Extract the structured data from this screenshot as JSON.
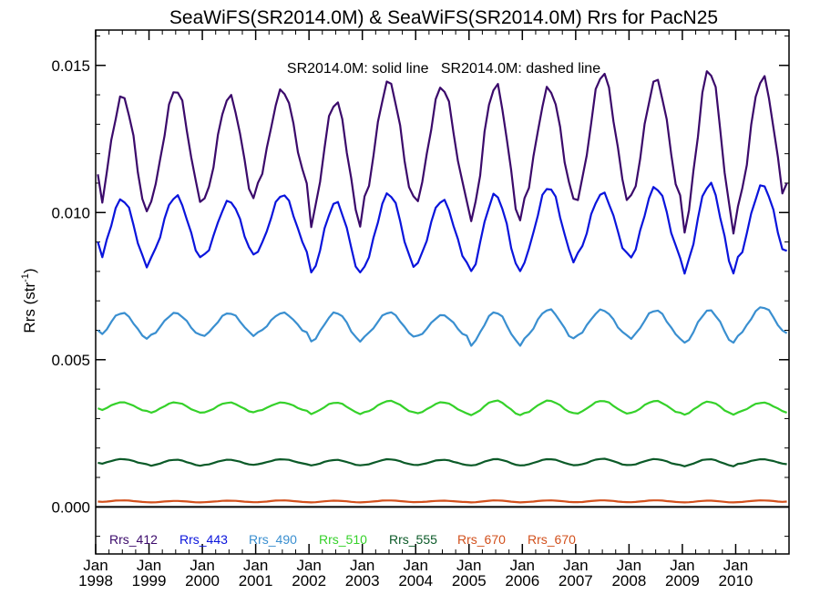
{
  "chart_data": {
    "type": "line",
    "title": "SeaWiFS(SR2014.0M) & SeaWiFS(SR2014.0M)  Rrs for PacN25",
    "annotation": "SR2014.0M: solid line   SR2014.0M: dashed line",
    "ylabel": "Rrs (str",
    "ylabel_sup": "-1",
    "ylabel_close": ")",
    "ylim": [
      -0.0016,
      0.0162
    ],
    "yticks": [
      {
        "value": 0.0,
        "label": "0.000"
      },
      {
        "value": 0.005,
        "label": "0.005"
      },
      {
        "value": 0.01,
        "label": "0.010"
      },
      {
        "value": 0.015,
        "label": "0.015"
      }
    ],
    "xlim": [
      "1998-01",
      "2011-01"
    ],
    "xticks": [
      {
        "month": "Jan",
        "year": "1998"
      },
      {
        "month": "Jan",
        "year": "1999"
      },
      {
        "month": "Jan",
        "year": "2000"
      },
      {
        "month": "Jan",
        "year": "2001"
      },
      {
        "month": "Jan",
        "year": "2002"
      },
      {
        "month": "Jan",
        "year": "2003"
      },
      {
        "month": "Jan",
        "year": "2004"
      },
      {
        "month": "Jan",
        "year": "2005"
      },
      {
        "month": "Jan",
        "year": "2006"
      },
      {
        "month": "Jan",
        "year": "2007"
      },
      {
        "month": "Jan",
        "year": "2008"
      },
      {
        "month": "Jan",
        "year": "2009"
      },
      {
        "month": "Jan",
        "year": "2010"
      }
    ],
    "series": [
      {
        "name": "Rrs_412",
        "color": "#3b0a6b",
        "style": "solid",
        "yearly_peak": [
          0.014,
          0.0142,
          0.0139,
          0.0141,
          0.0137,
          0.0144,
          0.0143,
          0.0144,
          0.0143,
          0.0148,
          0.0145,
          0.0148,
          0.0145
        ],
        "yearly_trough": [
          0.0098,
          0.0104,
          0.0104,
          0.011,
          0.0096,
          0.0104,
          0.0104,
          0.0095,
          0.0103,
          0.0104,
          0.0104,
          0.0094,
          0.0102
        ],
        "first_value": 0.0113,
        "last_value": 0.011
      },
      {
        "name": "Rrs_443",
        "color": "#0a14dc",
        "style": "solid",
        "yearly_peak": [
          0.0105,
          0.0106,
          0.0104,
          0.0106,
          0.0103,
          0.0106,
          0.0104,
          0.0106,
          0.0109,
          0.0107,
          0.0109,
          0.011,
          0.0109
        ],
        "yearly_trough": [
          0.0081,
          0.0084,
          0.0085,
          0.0087,
          0.0079,
          0.0082,
          0.0083,
          0.0079,
          0.0083,
          0.0085,
          0.0084,
          0.0079,
          0.0084
        ],
        "first_value": 0.009,
        "last_value": 0.0087
      },
      {
        "name": "Rrs_490",
        "color": "#3a8fd0",
        "style": "solid",
        "yearly_peak": [
          0.0066,
          0.0066,
          0.0066,
          0.0066,
          0.0066,
          0.0066,
          0.0065,
          0.0066,
          0.0067,
          0.0067,
          0.0067,
          0.0067,
          0.0068
        ],
        "yearly_trough": [
          0.0057,
          0.0058,
          0.0058,
          0.0059,
          0.0056,
          0.0058,
          0.0058,
          0.0055,
          0.0057,
          0.0058,
          0.0057,
          0.0055,
          0.0058
        ],
        "first_value": 0.006,
        "last_value": 0.0059
      },
      {
        "name": "Rrs_510",
        "color": "#35d12a",
        "style": "solid",
        "yearly_peak": [
          0.00355,
          0.00355,
          0.00355,
          0.00355,
          0.00355,
          0.0036,
          0.00355,
          0.0036,
          0.0036,
          0.0036,
          0.0036,
          0.00358,
          0.00355
        ],
        "yearly_trough": [
          0.00325,
          0.0032,
          0.0032,
          0.00325,
          0.00315,
          0.0032,
          0.00318,
          0.00312,
          0.00318,
          0.00318,
          0.00318,
          0.00312,
          0.0032
        ],
        "first_value": 0.00335,
        "last_value": 0.0032
      },
      {
        "name": "Rrs_555",
        "color": "#0b5a28",
        "style": "solid",
        "yearly_peak": [
          0.00162,
          0.0016,
          0.0016,
          0.00162,
          0.0016,
          0.00162,
          0.0016,
          0.00162,
          0.00162,
          0.00163,
          0.00162,
          0.00162,
          0.00162
        ],
        "yearly_trough": [
          0.00145,
          0.0014,
          0.00142,
          0.00145,
          0.0014,
          0.00142,
          0.00142,
          0.0014,
          0.00142,
          0.00142,
          0.00142,
          0.00138,
          0.00145
        ],
        "first_value": 0.0015,
        "last_value": 0.00145
      },
      {
        "name": "Rrs_670",
        "color": "#d2501c",
        "style": "solid",
        "yearly_peak": [
          0.00022,
          0.0002,
          0.00021,
          0.00022,
          0.00021,
          0.00022,
          0.00021,
          0.00022,
          0.00022,
          0.00022,
          0.00022,
          0.00021,
          0.00022
        ],
        "yearly_trough": [
          0.00016,
          0.00015,
          0.00016,
          0.00016,
          0.00015,
          0.00016,
          0.00016,
          0.00015,
          0.00016,
          0.00016,
          0.00016,
          0.00015,
          0.00016
        ],
        "first_value": 0.00018,
        "last_value": 0.00018
      }
    ],
    "legend": [
      {
        "label": "Rrs_412",
        "color": "#3b0a6b"
      },
      {
        "label": "Rrs_443",
        "color": "#0a14dc"
      },
      {
        "label": "Rrs_490",
        "color": "#3a8fd0"
      },
      {
        "label": "Rrs_510",
        "color": "#35d12a"
      },
      {
        "label": "Rrs_555",
        "color": "#0b5a28"
      },
      {
        "label": "Rrs_670",
        "color": "#d2501c"
      },
      {
        "label": "Rrs_670",
        "color": "#d2501c"
      }
    ],
    "legend_placement": "bottom",
    "zero_line": true,
    "grid": false
  }
}
